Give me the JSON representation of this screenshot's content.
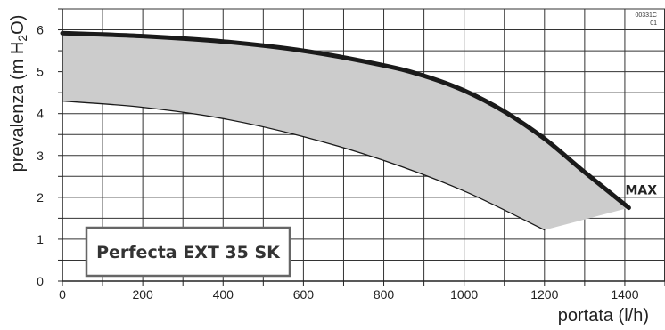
{
  "chart_data": {
    "type": "area",
    "xlabel": "portata (l/h)",
    "ylabel_parts": [
      "prevalenza (m H",
      "2",
      "O)"
    ],
    "xlim": [
      0,
      1500
    ],
    "ylim": [
      0,
      6.5
    ],
    "x_ticks": [
      "0",
      "200",
      "400",
      "600",
      "800",
      "1000",
      "1200",
      "1400"
    ],
    "y_ticks": [
      "0",
      "1",
      "2",
      "3",
      "4",
      "5",
      "6"
    ],
    "grid": true,
    "model_label": "Perfecta EXT 35 SK",
    "code_label": [
      "00331C",
      "01"
    ],
    "series": [
      {
        "name": "MAX",
        "style": "thick",
        "x": [
          0,
          200,
          400,
          600,
          800,
          900,
          1000,
          1100,
          1200,
          1300,
          1410
        ],
        "y": [
          5.92,
          5.85,
          5.72,
          5.5,
          5.15,
          4.9,
          4.55,
          4.05,
          3.4,
          2.6,
          1.75
        ]
      },
      {
        "name": "",
        "style": "thin",
        "x": [
          0,
          200,
          400,
          600,
          800,
          1000,
          1200
        ],
        "y": [
          4.3,
          4.15,
          3.88,
          3.45,
          2.88,
          2.15,
          1.22
        ]
      }
    ],
    "band": {
      "fill": "#cccccc",
      "from_series": 1,
      "to_series": 0,
      "closing_x_range": [
        1200,
        1410
      ]
    },
    "colors": {
      "line": "#1a1a1a",
      "band": "#cccccc",
      "grid": "#333333"
    }
  }
}
